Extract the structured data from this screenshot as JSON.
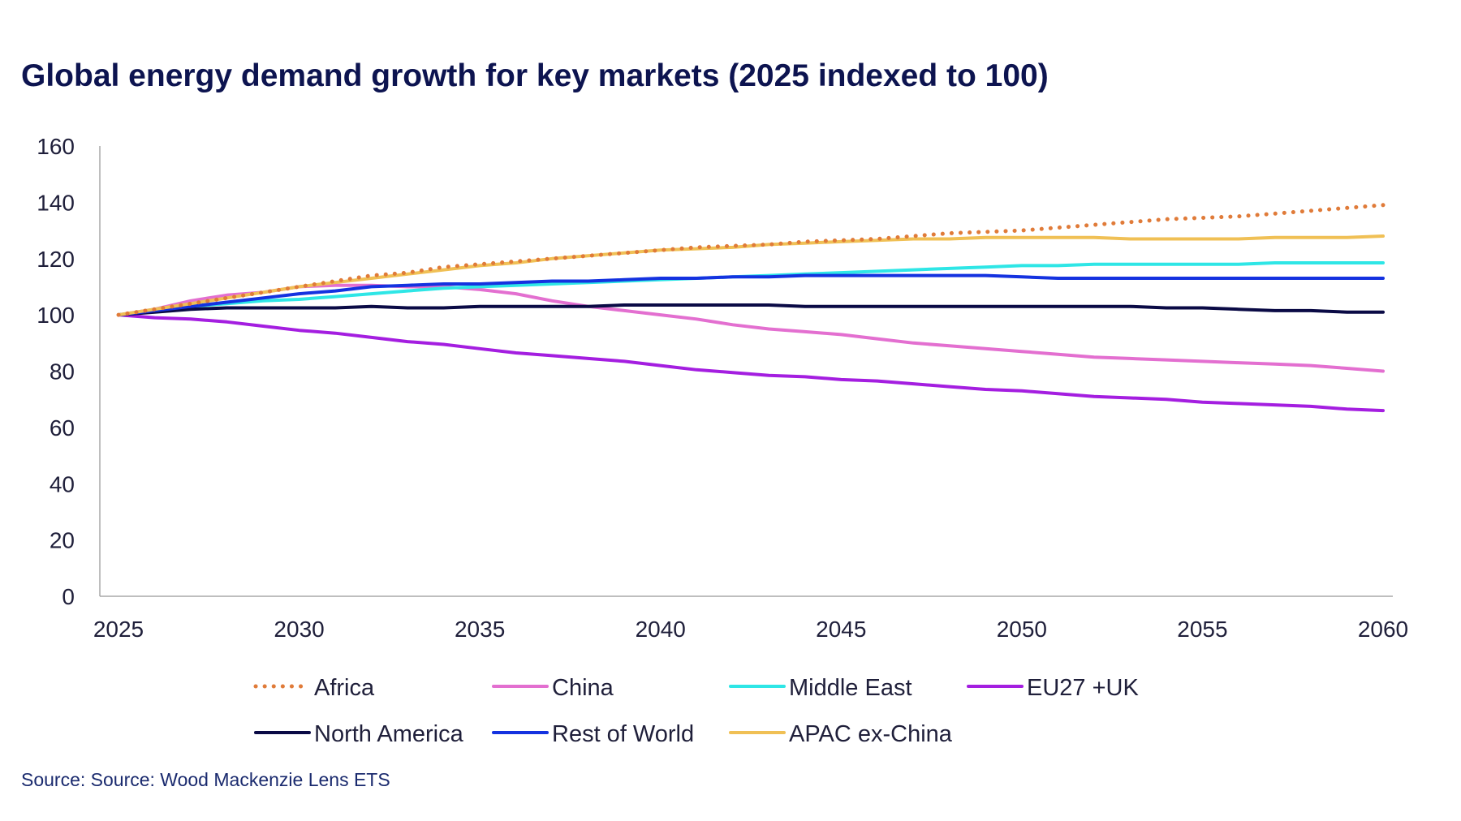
{
  "chart_data": {
    "type": "line",
    "title": "Global energy demand growth for key markets (2025 indexed to 100)",
    "source": "Source: Source: Wood Mackenzie Lens ETS",
    "xlabel": "",
    "ylabel": "",
    "xlim": [
      2025,
      2060
    ],
    "ylim": [
      0,
      160
    ],
    "x_ticks": [
      "2025",
      "2030",
      "2035",
      "2040",
      "2045",
      "2050",
      "2055",
      "2060"
    ],
    "y_ticks": [
      "0",
      "20",
      "40",
      "60",
      "80",
      "100",
      "120",
      "140",
      "160"
    ],
    "grid": false,
    "legend_position": "bottom",
    "x": [
      2025,
      2026,
      2027,
      2028,
      2029,
      2030,
      2031,
      2032,
      2033,
      2034,
      2035,
      2036,
      2037,
      2038,
      2039,
      2040,
      2041,
      2042,
      2043,
      2044,
      2045,
      2046,
      2047,
      2048,
      2049,
      2050,
      2051,
      2052,
      2053,
      2054,
      2055,
      2056,
      2057,
      2058,
      2059,
      2060
    ],
    "series": [
      {
        "name": "Africa",
        "color": "#e07b39",
        "dash": "dotted",
        "values": [
          100,
          102,
          104,
          106,
          108,
          110,
          112,
          114,
          115,
          117,
          118,
          119,
          120,
          121,
          122,
          123,
          124,
          124.5,
          125,
          126,
          126.5,
          127,
          128,
          129,
          129.5,
          130,
          131,
          132,
          133,
          134,
          134.5,
          135,
          136,
          137,
          138,
          139
        ]
      },
      {
        "name": "China",
        "color": "#e36fd0",
        "dash": "solid",
        "values": [
          100,
          102,
          105,
          107,
          108,
          110,
          110.5,
          110.5,
          110,
          110,
          109,
          107.5,
          105,
          103,
          101.5,
          100,
          98.5,
          96.5,
          95,
          94,
          93,
          91.5,
          90,
          89,
          88,
          87,
          86,
          85,
          84.5,
          84,
          83.5,
          83,
          82.5,
          82,
          81,
          80
        ]
      },
      {
        "name": "Middle East",
        "color": "#2ee6e6",
        "dash": "solid",
        "values": [
          100,
          101.5,
          103,
          104,
          105,
          105.5,
          106.5,
          107.5,
          108.5,
          109.5,
          110,
          110.5,
          111,
          111.5,
          112,
          112.5,
          113,
          113.5,
          114,
          114.5,
          115,
          115.5,
          116,
          116.5,
          117,
          117.5,
          117.5,
          118,
          118,
          118,
          118,
          118,
          118.5,
          118.5,
          118.5,
          118.5
        ]
      },
      {
        "name": "EU27 +UK",
        "color": "#a41ee0",
        "dash": "solid",
        "values": [
          100,
          99,
          98.5,
          97.5,
          96,
          94.5,
          93.5,
          92,
          90.5,
          89.5,
          88,
          86.5,
          85.5,
          84.5,
          83.5,
          82,
          80.5,
          79.5,
          78.5,
          78,
          77,
          76.5,
          75.5,
          74.5,
          73.5,
          73,
          72,
          71,
          70.5,
          70,
          69,
          68.5,
          68,
          67.5,
          66.5,
          66
        ]
      },
      {
        "name": "North America",
        "color": "#0a0a45",
        "dash": "solid",
        "values": [
          100,
          101,
          102,
          102.5,
          102.5,
          102.5,
          102.5,
          103,
          102.5,
          102.5,
          103,
          103,
          103,
          103,
          103.5,
          103.5,
          103.5,
          103.5,
          103.5,
          103,
          103,
          103,
          103,
          103,
          103,
          103,
          103,
          103,
          103,
          102.5,
          102.5,
          102,
          101.5,
          101.5,
          101,
          101
        ]
      },
      {
        "name": "Rest of World",
        "color": "#1432e0",
        "dash": "solid",
        "values": [
          100,
          101.5,
          103,
          104.5,
          106,
          107.5,
          108.5,
          110,
          110.5,
          111,
          111,
          111.5,
          112,
          112,
          112.5,
          113,
          113,
          113.5,
          113.5,
          114,
          114,
          114,
          114,
          114,
          114,
          113.5,
          113,
          113,
          113,
          113,
          113,
          113,
          113,
          113,
          113,
          113
        ]
      },
      {
        "name": "APAC ex-China",
        "color": "#f0c055",
        "dash": "solid",
        "values": [
          100,
          102,
          104,
          106,
          108,
          110,
          111.5,
          113,
          114.5,
          116,
          117.5,
          118.5,
          120,
          121,
          122,
          123,
          123.5,
          124,
          125,
          125.5,
          126,
          126.5,
          127,
          127,
          127.5,
          127.5,
          127.5,
          127.5,
          127,
          127,
          127,
          127,
          127.5,
          127.5,
          127.5,
          128
        ]
      }
    ]
  }
}
